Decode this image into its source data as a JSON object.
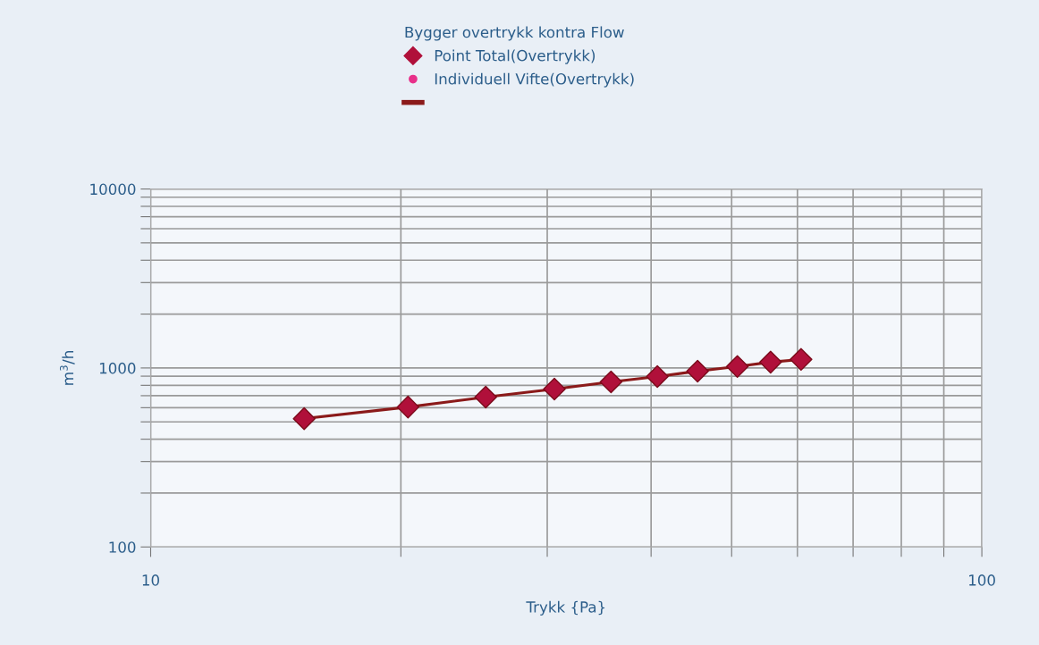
{
  "chart_data": {
    "type": "scatter",
    "xlabel": "Trykk {Pa}",
    "ylabel": "m$^{3}$/h",
    "legend_title": "Bygger overtrykk kontra Flow",
    "x": [
      15.3,
      20.4,
      25.3,
      30.6,
      35.8,
      40.7,
      45.5,
      50.8,
      55.7,
      60.6
    ],
    "series": [
      {
        "name": "Point Total(Overtrykk)",
        "color": "#b0103a",
        "marker": "diamond",
        "values": [
          521,
          605,
          687,
          762,
          836,
          896,
          960,
          1018,
          1078,
          1116
        ]
      },
      {
        "name": "Individuell Vifte(Overtrykk)",
        "color": "#e8308a",
        "marker": "circle",
        "values": [
          null,
          null,
          null,
          null,
          null,
          null,
          null,
          null,
          null,
          null
        ]
      },
      {
        "type": "line",
        "color": "#8b1a1a",
        "marker": "none",
        "values": [
          521,
          605,
          687,
          762,
          836,
          896,
          960,
          1018,
          1078,
          1116
        ]
      }
    ],
    "log": "xy",
    "xlim": [
      10,
      100
    ],
    "ylim": [
      100,
      10000
    ],
    "xticks": [
      10,
      {
        "value": 20,
        "label": null
      },
      {
        "value": 30,
        "label": null
      },
      {
        "value": 40,
        "label": null
      },
      {
        "value": 50,
        "label": null
      },
      {
        "value": 60,
        "label": null
      },
      {
        "value": 70,
        "label": null
      },
      {
        "value": 80,
        "label": null
      },
      {
        "value": 90,
        "label": null
      },
      100
    ],
    "yticks": [
      100,
      {
        "value": 200,
        "label": null
      },
      {
        "value": 300,
        "label": null
      },
      {
        "value": 400,
        "label": null
      },
      {
        "value": 500,
        "label": null
      },
      {
        "value": 600,
        "label": null
      },
      {
        "value": 700,
        "label": null
      },
      {
        "value": 800,
        "label": null
      },
      {
        "value": 900,
        "label": null
      },
      1000,
      {
        "value": 2000,
        "label": null
      },
      {
        "value": 3000,
        "label": null
      },
      {
        "value": 4000,
        "label": null
      },
      {
        "value": 5000,
        "label": null
      },
      {
        "value": 6000,
        "label": null
      },
      {
        "value": 7000,
        "label": null
      },
      {
        "value": 8000,
        "label": null
      },
      {
        "value": 9000,
        "label": null
      },
      10000
    ],
    "grid": true,
    "legend": "top"
  }
}
